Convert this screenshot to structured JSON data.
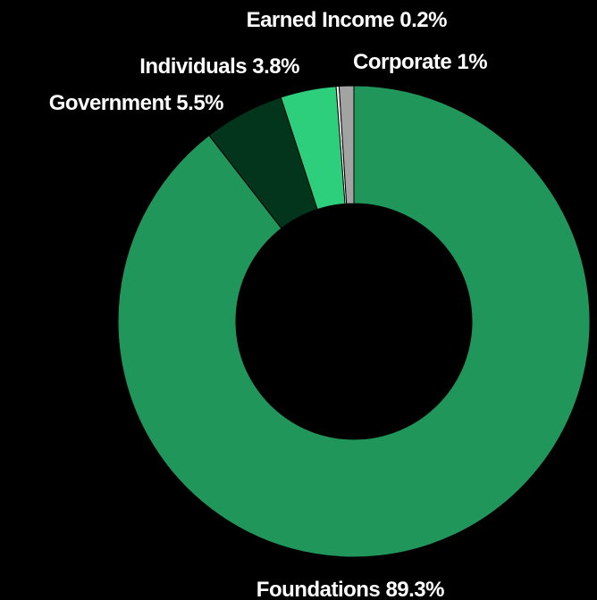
{
  "chart_data": {
    "type": "pie",
    "variant": "donut",
    "title": "",
    "legend": "none",
    "slices": [
      {
        "label": "Foundations 89.3%",
        "category": "Foundations",
        "value": 89.3,
        "color": "#21965b"
      },
      {
        "label": "Government 5.5%",
        "category": "Government",
        "value": 5.5,
        "color": "#03341c"
      },
      {
        "label": "Individuals 3.8%",
        "category": "Individuals",
        "value": 3.8,
        "color": "#2ecf7c"
      },
      {
        "label": "Earned Income 0.2%",
        "category": "Earned Income",
        "value": 0.2,
        "color": "#ffffff"
      },
      {
        "label": "Corporate 1%",
        "category": "Corporate",
        "value": 1,
        "color": "#a3a3a3"
      }
    ]
  },
  "colors": {
    "background": "#000000",
    "label_text": "#ffffff"
  }
}
